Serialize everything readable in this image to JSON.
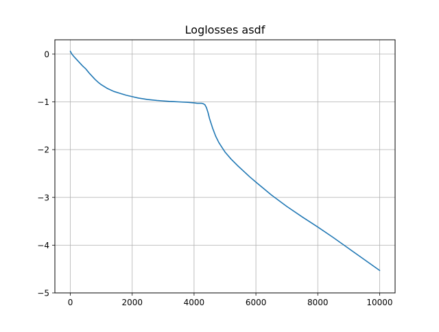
{
  "chart_data": {
    "type": "line",
    "title": "Loglosses asdf",
    "xlabel": "",
    "ylabel": "",
    "xlim": [
      -500,
      10500
    ],
    "ylim": [
      -5,
      0.3
    ],
    "xticks": [
      0,
      2000,
      4000,
      6000,
      8000,
      10000
    ],
    "yticks": [
      0,
      -1,
      -2,
      -3,
      -4,
      -5
    ],
    "xtick_labels": [
      "0",
      "2000",
      "4000",
      "6000",
      "8000",
      "10000"
    ],
    "ytick_labels": [
      "0",
      "−1",
      "−2",
      "−3",
      "−4",
      "−5"
    ],
    "grid": true,
    "legend": "none",
    "series": [
      {
        "color": "#1f77b4",
        "x": [
          0,
          50,
          100,
          200,
          300,
          400,
          500,
          600,
          700,
          800,
          900,
          1000,
          1200,
          1400,
          1600,
          1800,
          2000,
          2200,
          2500,
          2800,
          3000,
          3200,
          3500,
          3800,
          4000,
          4100,
          4200,
          4250,
          4300,
          4350,
          4400,
          4450,
          4500,
          4600,
          4700,
          4800,
          4900,
          5000,
          5200,
          5400,
          5600,
          5800,
          6000,
          6500,
          7000,
          7500,
          8000,
          8500,
          9000,
          9500,
          10000
        ],
        "y": [
          0.06,
          0.0,
          -0.04,
          -0.11,
          -0.18,
          -0.25,
          -0.31,
          -0.39,
          -0.46,
          -0.53,
          -0.59,
          -0.64,
          -0.72,
          -0.78,
          -0.82,
          -0.86,
          -0.89,
          -0.92,
          -0.95,
          -0.97,
          -0.98,
          -0.99,
          -1.0,
          -1.01,
          -1.02,
          -1.03,
          -1.03,
          -1.03,
          -1.04,
          -1.06,
          -1.12,
          -1.22,
          -1.35,
          -1.55,
          -1.72,
          -1.85,
          -1.95,
          -2.05,
          -2.2,
          -2.33,
          -2.45,
          -2.57,
          -2.68,
          -2.95,
          -3.19,
          -3.41,
          -3.62,
          -3.84,
          -4.07,
          -4.3,
          -4.53
        ]
      }
    ]
  }
}
